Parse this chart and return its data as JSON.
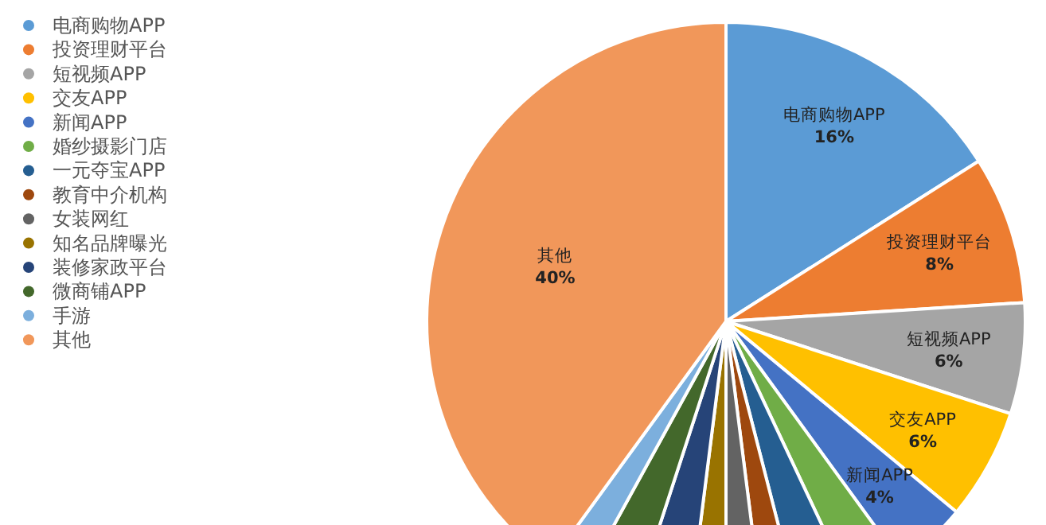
{
  "chart_data": {
    "type": "pie",
    "categories": [
      "电商购物APP",
      "投资理财平台",
      "短视频APP",
      "交友APP",
      "新闻APP",
      "婚纱摄影门店",
      "一元夺宝APP",
      "教育中介机构",
      "女装网红",
      "知名品牌曝光",
      "装修家政平台",
      "微商铺APP",
      "手游",
      "其他"
    ],
    "values": [
      16,
      8,
      6,
      6,
      4,
      3,
      3,
      2,
      2,
      2,
      3,
      3,
      2,
      40
    ],
    "value_labels": [
      "16%",
      "8%",
      "6%",
      "6%",
      "4%",
      null,
      null,
      null,
      null,
      null,
      null,
      null,
      null,
      "40%"
    ],
    "colors": [
      "#5b9bd5",
      "#ed7d31",
      "#a5a5a5",
      "#ffc000",
      "#4472c4",
      "#70ad47",
      "#255e91",
      "#9e480e",
      "#636363",
      "#997300",
      "#264478",
      "#43682b",
      "#7cafdd",
      "#f1975a"
    ],
    "legend": "top left"
  }
}
